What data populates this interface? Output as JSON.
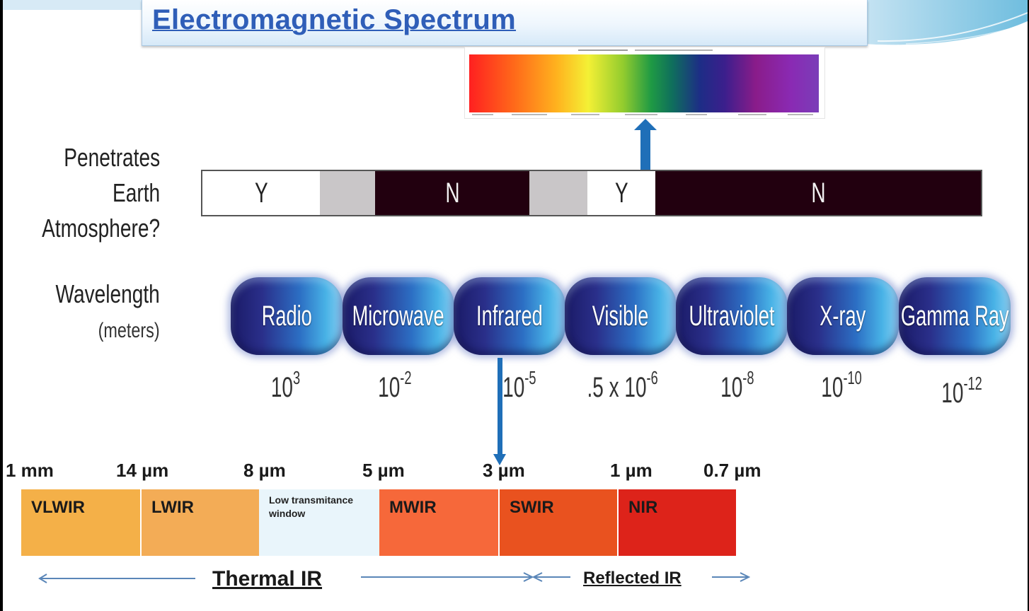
{
  "title": "Electromagnetic Spectrum",
  "labels": {
    "penetrates": [
      "Penetrates",
      "Earth",
      "Atmosphere?"
    ],
    "wavelength": "Wavelength",
    "wavelength_unit": "(meters)"
  },
  "atmosphere_segments": [
    {
      "value": "Y",
      "kind": "yes"
    },
    {
      "value": "",
      "kind": "partial"
    },
    {
      "value": "N",
      "kind": "no"
    },
    {
      "value": "",
      "kind": "partial"
    },
    {
      "value": "Y",
      "kind": "yes"
    },
    {
      "value": "N",
      "kind": "no"
    }
  ],
  "bands": [
    "Radio",
    "Microwave",
    "Infrared",
    "Visible",
    "Ultraviolet",
    "X-ray",
    "Gamma Ray"
  ],
  "wavelengths": [
    {
      "base": "10",
      "exp": "3"
    },
    {
      "base": "10",
      "exp": "-2"
    },
    {
      "base": "10",
      "exp": "-5"
    },
    {
      "base": ".5 x 10",
      "exp": "-6"
    },
    {
      "base": "10",
      "exp": "-8"
    },
    {
      "base": "10",
      "exp": "-10"
    },
    {
      "base": "10",
      "exp": "-12"
    }
  ],
  "ir_ticks": [
    "1 mm",
    "14 µm",
    "8 µm",
    "5 µm",
    "3 µm",
    "1 µm",
    "0.7 µm"
  ],
  "ir_bands": [
    {
      "name": "VLWIR",
      "color": "#f4b048"
    },
    {
      "name": "LWIR",
      "color": "#f3ac56"
    },
    {
      "name": "Low transmitance window",
      "color": "#e9f5fb"
    },
    {
      "name": "MWIR",
      "color": "#f6683a"
    },
    {
      "name": "SWIR",
      "color": "#e9521f"
    },
    {
      "name": "NIR",
      "color": "#dd231a"
    }
  ],
  "ir_groups": {
    "thermal": "Thermal IR",
    "reflected": "Reflected IR"
  },
  "colors": {
    "title": "#2f5eb8",
    "arrow": "#1f6fb8",
    "atm_no": "#22000f",
    "atm_partial": "#c9c6c8"
  }
}
